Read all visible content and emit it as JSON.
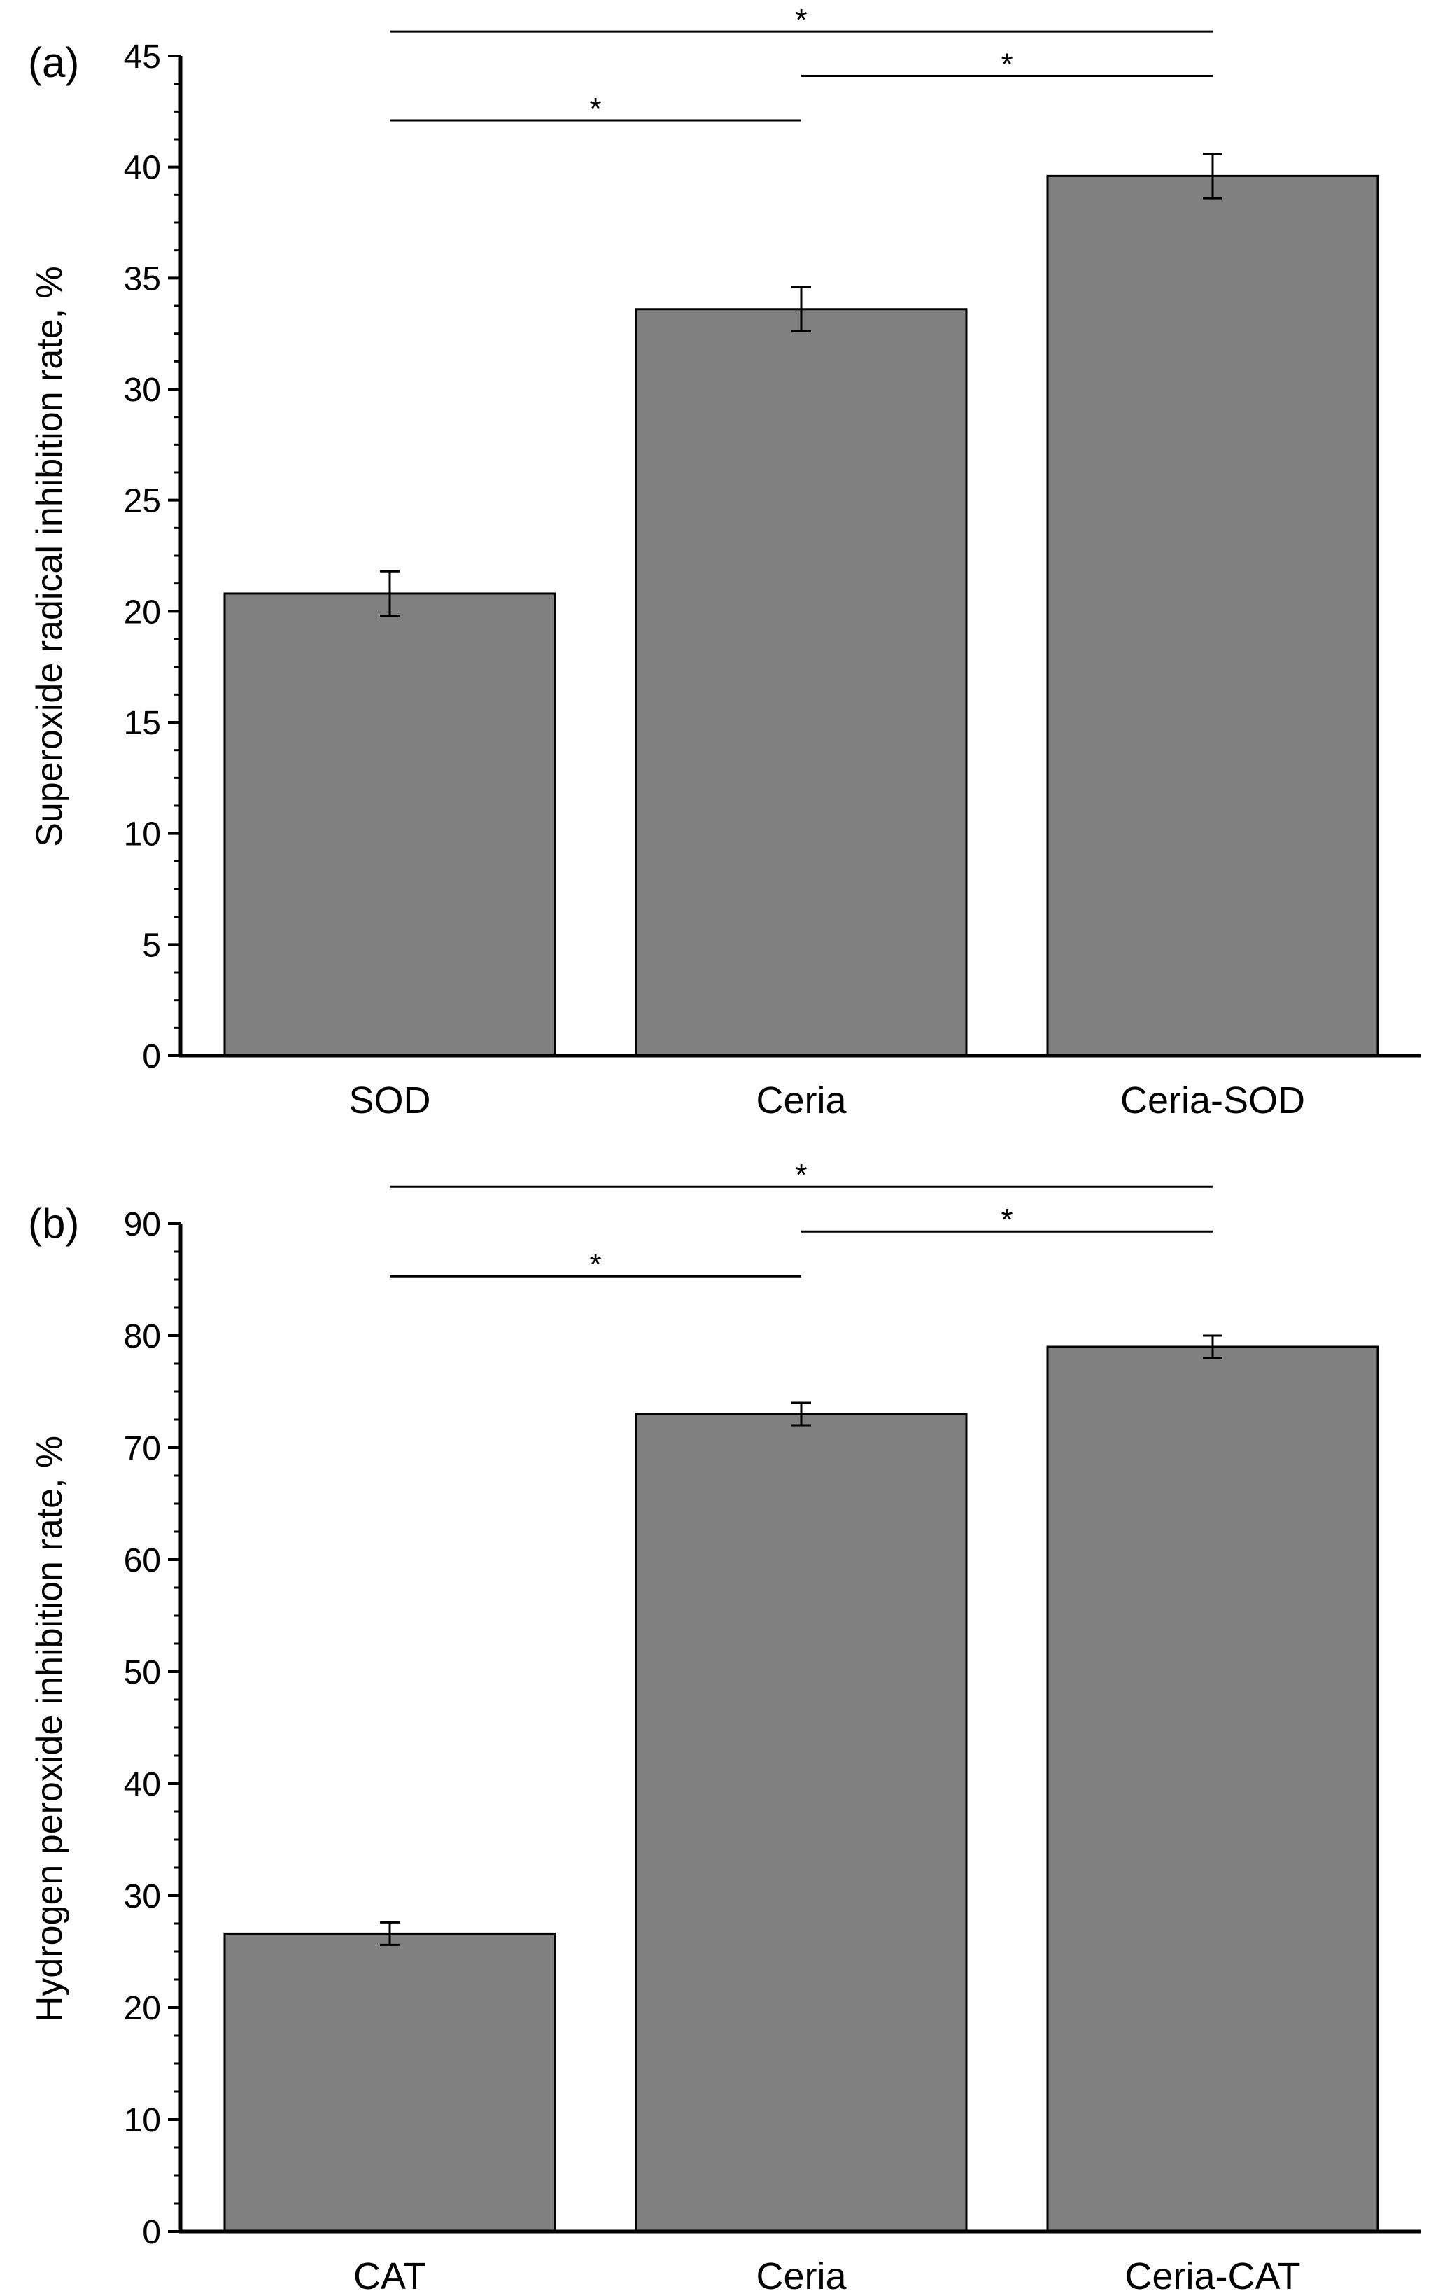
{
  "chart_data": [
    {
      "type": "bar",
      "panel": "(a)",
      "title": "",
      "xlabel": "",
      "ylabel": "Superoxide radical inhibition rate, %",
      "categories": [
        "SOD",
        "Ceria",
        "Ceria-SOD"
      ],
      "values": [
        20.8,
        33.6,
        39.6
      ],
      "errors": [
        1.0,
        1.0,
        1.0
      ],
      "ylim": [
        0,
        45
      ],
      "yticks": [
        0,
        5,
        10,
        15,
        20,
        25,
        30,
        35,
        40,
        45
      ],
      "ytick_labels": [
        "0",
        "5",
        "10",
        "15",
        "20",
        "25",
        "30",
        "35",
        "40",
        "45"
      ],
      "grid": false,
      "bar_color": "#808080",
      "significance": [
        {
          "from": 0,
          "to": 1,
          "label": "*",
          "y": 42.1
        },
        {
          "from": 1,
          "to": 2,
          "label": "*",
          "y": 44.1
        },
        {
          "from": 0,
          "to": 2,
          "label": "*",
          "y": 46.1
        }
      ]
    },
    {
      "type": "bar",
      "panel": "(b)",
      "title": "",
      "xlabel": "",
      "ylabel": "Hydrogen peroxide inhibition rate, %",
      "categories": [
        "CAT",
        "Ceria",
        "Ceria-CAT"
      ],
      "values": [
        26.6,
        73.0,
        79.0
      ],
      "errors": [
        1.0,
        1.0,
        1.0
      ],
      "ylim": [
        0,
        90
      ],
      "yticks": [
        0,
        10,
        20,
        30,
        40,
        50,
        60,
        70,
        80,
        90
      ],
      "ytick_labels": [
        "0",
        "10",
        "20",
        "30",
        "40",
        "50",
        "60",
        "70",
        "80",
        "90"
      ],
      "grid": false,
      "bar_color": "#808080",
      "significance": [
        {
          "from": 0,
          "to": 1,
          "label": "*",
          "y": 85.3
        },
        {
          "from": 1,
          "to": 2,
          "label": "*",
          "y": 89.3
        },
        {
          "from": 0,
          "to": 2,
          "label": "*",
          "y": 93.3
        }
      ]
    }
  ]
}
